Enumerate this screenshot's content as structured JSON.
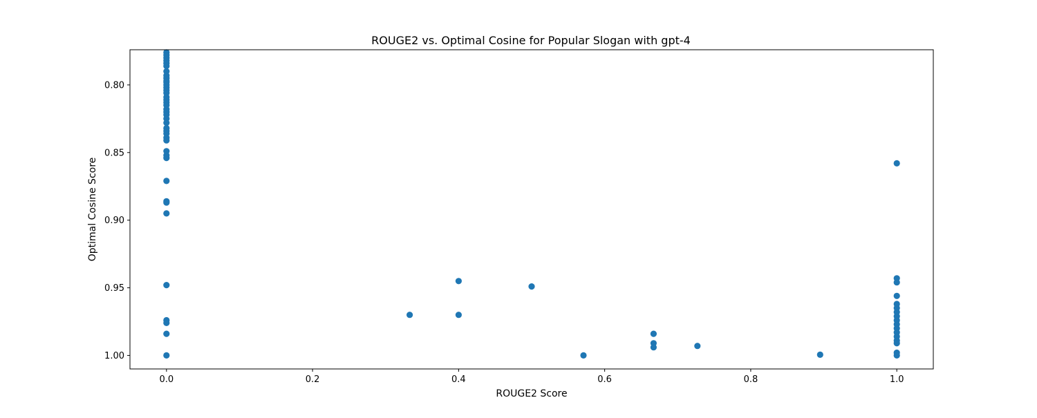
{
  "chart_data": {
    "type": "scatter",
    "title": "ROUGE2 vs. Optimal Cosine for Popular Slogan with gpt-4",
    "xlabel": "ROUGE2 Score",
    "ylabel": "Optimal Cosine Score",
    "xlim": [
      -0.05,
      1.05
    ],
    "ylim": [
      1.01,
      0.774
    ],
    "y_inverted": true,
    "x_ticks": [
      {
        "value": 0.0,
        "label": "0.0"
      },
      {
        "value": 0.2,
        "label": "0.2"
      },
      {
        "value": 0.4,
        "label": "0.4"
      },
      {
        "value": 0.6,
        "label": "0.6"
      },
      {
        "value": 0.8,
        "label": "0.8"
      },
      {
        "value": 1.0,
        "label": "1.0"
      }
    ],
    "y_ticks": [
      {
        "value": 0.8,
        "label": "0.80"
      },
      {
        "value": 0.85,
        "label": "0.85"
      },
      {
        "value": 0.9,
        "label": "0.90"
      },
      {
        "value": 0.95,
        "label": "0.95"
      },
      {
        "value": 1.0,
        "label": "1.00"
      }
    ],
    "grid": false,
    "marker_color": "#1f77b4",
    "points": [
      {
        "x": 0,
        "y": 0.776
      },
      {
        "x": 0,
        "y": 0.778
      },
      {
        "x": 0,
        "y": 0.78
      },
      {
        "x": 0,
        "y": 0.782
      },
      {
        "x": 0,
        "y": 0.784
      },
      {
        "x": 0,
        "y": 0.786
      },
      {
        "x": 0,
        "y": 0.79
      },
      {
        "x": 0,
        "y": 0.793
      },
      {
        "x": 0,
        "y": 0.795
      },
      {
        "x": 0,
        "y": 0.797
      },
      {
        "x": 0,
        "y": 0.798
      },
      {
        "x": 0,
        "y": 0.8
      },
      {
        "x": 0,
        "y": 0.802
      },
      {
        "x": 0,
        "y": 0.804
      },
      {
        "x": 0,
        "y": 0.806
      },
      {
        "x": 0,
        "y": 0.809
      },
      {
        "x": 0,
        "y": 0.811
      },
      {
        "x": 0,
        "y": 0.813
      },
      {
        "x": 0,
        "y": 0.815
      },
      {
        "x": 0,
        "y": 0.818
      },
      {
        "x": 0,
        "y": 0.82
      },
      {
        "x": 0,
        "y": 0.822
      },
      {
        "x": 0,
        "y": 0.825
      },
      {
        "x": 0,
        "y": 0.828
      },
      {
        "x": 0,
        "y": 0.832
      },
      {
        "x": 0,
        "y": 0.834
      },
      {
        "x": 0,
        "y": 0.836
      },
      {
        "x": 0,
        "y": 0.839
      },
      {
        "x": 0,
        "y": 0.841
      },
      {
        "x": 0,
        "y": 0.849
      },
      {
        "x": 0,
        "y": 0.852
      },
      {
        "x": 0,
        "y": 0.854
      },
      {
        "x": 0,
        "y": 0.871
      },
      {
        "x": 0,
        "y": 0.886
      },
      {
        "x": 0,
        "y": 0.887
      },
      {
        "x": 0,
        "y": 0.895
      },
      {
        "x": 0,
        "y": 0.948
      },
      {
        "x": 0,
        "y": 0.974
      },
      {
        "x": 0,
        "y": 0.976
      },
      {
        "x": 0,
        "y": 0.984
      },
      {
        "x": 0,
        "y": 1.0
      },
      {
        "x": 0.333,
        "y": 0.97
      },
      {
        "x": 0.4,
        "y": 0.945
      },
      {
        "x": 0.4,
        "y": 0.97
      },
      {
        "x": 0.5,
        "y": 0.949
      },
      {
        "x": 0.571,
        "y": 1.0
      },
      {
        "x": 0.667,
        "y": 0.984
      },
      {
        "x": 0.667,
        "y": 0.991
      },
      {
        "x": 0.667,
        "y": 0.994
      },
      {
        "x": 0.727,
        "y": 0.993
      },
      {
        "x": 0.895,
        "y": 0.9995
      },
      {
        "x": 1.0,
        "y": 0.858
      },
      {
        "x": 1.0,
        "y": 0.943
      },
      {
        "x": 1.0,
        "y": 0.946
      },
      {
        "x": 1.0,
        "y": 0.956
      },
      {
        "x": 1.0,
        "y": 0.962
      },
      {
        "x": 1.0,
        "y": 0.965
      },
      {
        "x": 1.0,
        "y": 0.968
      },
      {
        "x": 1.0,
        "y": 0.971
      },
      {
        "x": 1.0,
        "y": 0.974
      },
      {
        "x": 1.0,
        "y": 0.977
      },
      {
        "x": 1.0,
        "y": 0.98
      },
      {
        "x": 1.0,
        "y": 0.983
      },
      {
        "x": 1.0,
        "y": 0.986
      },
      {
        "x": 1.0,
        "y": 0.989
      },
      {
        "x": 1.0,
        "y": 0.991
      },
      {
        "x": 1.0,
        "y": 0.998
      },
      {
        "x": 1.0,
        "y": 1.0
      }
    ]
  }
}
